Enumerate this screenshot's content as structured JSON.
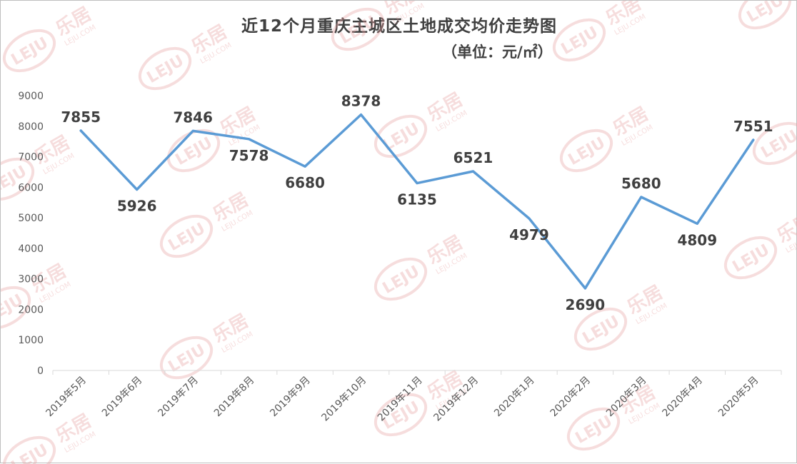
{
  "chart_data": {
    "type": "line",
    "title": "近12个月重庆主城区土地成交均价走势图",
    "subtitle": "（单位：元/㎡）",
    "categories": [
      "2019年5月",
      "2019年6月",
      "2019年7月",
      "2019年8月",
      "2019年9月",
      "2019年10月",
      "2019年11月",
      "2019年12月",
      "2020年1月",
      "2020年2月",
      "2020年3月",
      "2020年4月",
      "2020年5月"
    ],
    "values": [
      7855,
      5926,
      7846,
      7578,
      6680,
      8378,
      6135,
      6521,
      4979,
      2690,
      5680,
      4809,
      7551
    ],
    "ylim": [
      0,
      9000
    ],
    "yticks": [
      0,
      1000,
      2000,
      3000,
      4000,
      5000,
      6000,
      7000,
      8000,
      9000
    ],
    "series_color": "#5b9bd5",
    "grid": false,
    "legend": "none"
  },
  "watermark": {
    "logo_text": "LEJU",
    "brand_text": "乐居",
    "domain_text": "LEJU.COM",
    "color": "#e8a0a0"
  }
}
